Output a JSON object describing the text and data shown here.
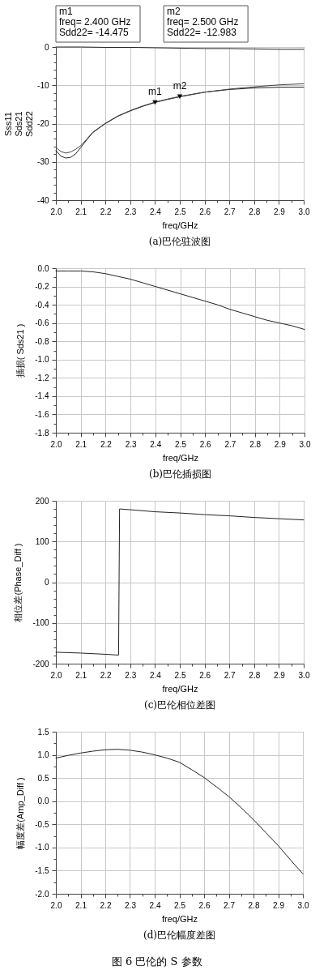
{
  "chart_data": [
    {
      "type": "line",
      "title": "(a)巴伦驻波图",
      "xlabel": "freq/GHz",
      "ylabel": "Sss11\nSds21\nSdd22",
      "xlim": [
        2,
        3
      ],
      "xticks": [
        {
          "value": 2,
          "label": "2.0"
        },
        {
          "value": 2.05,
          "label": null
        },
        2.1,
        {
          "value": 2.15,
          "label": null
        },
        2.2,
        {
          "value": 2.25,
          "label": null
        },
        2.3,
        {
          "value": 2.35,
          "label": null
        },
        2.4,
        {
          "value": 2.45,
          "label": null
        },
        2.5,
        {
          "value": 2.55,
          "label": null
        },
        2.6,
        {
          "value": 2.65,
          "label": null
        },
        2.7,
        {
          "value": 2.75,
          "label": null
        },
        2.8,
        {
          "value": 2.85,
          "label": null
        },
        2.9,
        {
          "value": 2.95,
          "label": null
        },
        {
          "value": 3,
          "label": "3.0"
        }
      ],
      "ylim": [
        -40,
        0
      ],
      "yticks": [
        0,
        {
          "value": -2,
          "label": null
        },
        {
          "value": -4,
          "label": null
        },
        {
          "value": -6,
          "label": null
        },
        {
          "value": -8,
          "label": null
        },
        -10,
        {
          "value": -12,
          "label": null
        },
        {
          "value": -14,
          "label": null
        },
        {
          "value": -16,
          "label": null
        },
        {
          "value": -18,
          "label": null
        },
        -20,
        {
          "value": -22,
          "label": null
        },
        {
          "value": -24,
          "label": null
        },
        {
          "value": -26,
          "label": null
        },
        {
          "value": -28,
          "label": null
        },
        -30,
        {
          "value": -32,
          "label": null
        },
        {
          "value": -34,
          "label": null
        },
        {
          "value": -36,
          "label": null
        },
        {
          "value": -38,
          "label": null
        },
        -40
      ],
      "grid": true,
      "line_style": "solid",
      "series": [
        {
          "color": "#222222",
          "x": [
            2.0,
            2.1,
            2.2,
            2.3,
            2.4,
            2.5,
            2.6,
            2.7,
            2.8,
            2.9,
            3.0
          ],
          "values": [
            0,
            0,
            -0.1,
            -0.1,
            -0.2,
            -0.3,
            -0.4,
            -0.4,
            -0.5,
            -0.6,
            -0.6
          ]
        },
        {
          "color": "#222222",
          "x": [
            2.0,
            2.02,
            2.04,
            2.06,
            2.08,
            2.1,
            2.125,
            2.15,
            2.2,
            2.25,
            2.3,
            2.35,
            2.4,
            2.45,
            2.5,
            2.6,
            2.7,
            2.8,
            2.9,
            3.0
          ],
          "values": [
            -27.0,
            -28.5,
            -29.0,
            -28.8,
            -27.9,
            -26.3,
            -24.2,
            -22.3,
            -20.0,
            -18.1,
            -16.7,
            -15.5,
            -14.5,
            -13.7,
            -13.0,
            -11.8,
            -11.1,
            -10.7,
            -10.5,
            -10.5
          ]
        },
        {
          "color": "#444444",
          "x": [
            2.0,
            2.02,
            2.04,
            2.06,
            2.08,
            2.1,
            2.125,
            2.15,
            2.2,
            2.25,
            2.3,
            2.35,
            2.4,
            2.45,
            2.5,
            2.6,
            2.7,
            2.8,
            2.9,
            3.0
          ],
          "values": [
            -26.2,
            -27.3,
            -27.7,
            -27.4,
            -26.7,
            -25.8,
            -24.0,
            -22.2,
            -19.9,
            -18.0,
            -16.6,
            -15.4,
            -14.4,
            -13.6,
            -12.9,
            -11.8,
            -11.0,
            -10.4,
            -9.9,
            -9.6
          ]
        }
      ],
      "annotations": [
        {
          "text": "m1",
          "x": 2.4,
          "y": -14.475
        },
        {
          "text": "m2",
          "x": 2.5,
          "y": -12.983
        },
        "m1\nfreq= 2.400 GHz\nSdd22= -14.475",
        "m2\nfreq= 2.500 GHz\nSdd22= -12.983"
      ]
    },
    {
      "type": "line",
      "title": "(b)巴伦插损图",
      "xlabel": "freq/GHz",
      "ylabel": "插损( Sds21 )",
      "xlim": [
        2,
        3
      ],
      "xticks": [
        {
          "value": 2,
          "label": "2.0"
        },
        {
          "value": 2.05,
          "label": null
        },
        2.1,
        {
          "value": 2.15,
          "label": null
        },
        2.2,
        {
          "value": 2.25,
          "label": null
        },
        2.3,
        {
          "value": 2.35,
          "label": null
        },
        2.4,
        {
          "value": 2.45,
          "label": null
        },
        2.5,
        {
          "value": 2.55,
          "label": null
        },
        2.6,
        {
          "value": 2.65,
          "label": null
        },
        2.7,
        {
          "value": 2.75,
          "label": null
        },
        2.8,
        {
          "value": 2.85,
          "label": null
        },
        2.9,
        {
          "value": 2.95,
          "label": null
        },
        {
          "value": 3,
          "label": "3.0"
        }
      ],
      "ylim": [
        -1.8,
        0
      ],
      "yticks": [
        {
          "value": 0,
          "label": "0.0"
        },
        {
          "value": -0.1,
          "label": null
        },
        -0.2,
        {
          "value": -0.3,
          "label": null
        },
        -0.4,
        {
          "value": -0.5,
          "label": null
        },
        -0.6,
        {
          "value": -0.7,
          "label": null
        },
        -0.8,
        {
          "value": -0.9,
          "label": null
        },
        {
          "value": -1,
          "label": "-1.0"
        },
        {
          "value": -1.1,
          "label": null
        },
        -1.2,
        {
          "value": -1.3,
          "label": null
        },
        -1.4,
        {
          "value": -1.5,
          "label": null
        },
        -1.6,
        {
          "value": -1.7,
          "label": null
        },
        -1.8
      ],
      "grid": true,
      "line_style": "solid",
      "series": [
        {
          "color": "#222222",
          "x": [
            2.0,
            2.05,
            2.1,
            2.15,
            2.2,
            2.25,
            2.3,
            2.35,
            2.4,
            2.45,
            2.5,
            2.55,
            2.6,
            2.65,
            2.7,
            2.75,
            2.8,
            2.85,
            2.9,
            2.95,
            3.0
          ],
          "values": [
            -0.03,
            -0.03,
            -0.03,
            -0.04,
            -0.06,
            -0.09,
            -0.12,
            -0.16,
            -0.2,
            -0.24,
            -0.28,
            -0.32,
            -0.36,
            -0.4,
            -0.45,
            -0.49,
            -0.53,
            -0.57,
            -0.6,
            -0.63,
            -0.67
          ]
        }
      ]
    },
    {
      "type": "line",
      "title": "(c)巴伦相位差图",
      "xlabel": "freq/GHz",
      "ylabel": "相位差(Phase_Diff )",
      "xlim": [
        2,
        3
      ],
      "xticks": [
        {
          "value": 2,
          "label": "2.0"
        },
        {
          "value": 2.05,
          "label": null
        },
        2.1,
        {
          "value": 2.15,
          "label": null
        },
        2.2,
        {
          "value": 2.25,
          "label": null
        },
        2.3,
        {
          "value": 2.35,
          "label": null
        },
        2.4,
        {
          "value": 2.45,
          "label": null
        },
        2.5,
        {
          "value": 2.55,
          "label": null
        },
        2.6,
        {
          "value": 2.65,
          "label": null
        },
        2.7,
        {
          "value": 2.75,
          "label": null
        },
        2.8,
        {
          "value": 2.85,
          "label": null
        },
        2.9,
        {
          "value": 2.95,
          "label": null
        },
        {
          "value": 3,
          "label": "3.0"
        }
      ],
      "ylim": [
        -200,
        200
      ],
      "yticks": [
        200,
        {
          "value": 180,
          "label": null
        },
        {
          "value": 160,
          "label": null
        },
        {
          "value": 140,
          "label": null
        },
        {
          "value": 120,
          "label": null
        },
        100,
        {
          "value": 80,
          "label": null
        },
        {
          "value": 60,
          "label": null
        },
        {
          "value": 40,
          "label": null
        },
        {
          "value": 20,
          "label": null
        },
        0,
        {
          "value": -20,
          "label": null
        },
        {
          "value": -40,
          "label": null
        },
        {
          "value": -60,
          "label": null
        },
        {
          "value": -80,
          "label": null
        },
        -100,
        {
          "value": -120,
          "label": null
        },
        {
          "value": -140,
          "label": null
        },
        {
          "value": -160,
          "label": null
        },
        {
          "value": -180,
          "label": null
        },
        -200
      ],
      "grid": true,
      "line_style": "solid",
      "series": [
        {
          "color": "#222222",
          "x": [
            2.0,
            2.1,
            2.2,
            2.253,
            2.257,
            2.3,
            2.4,
            2.5,
            2.6,
            2.7,
            2.8,
            2.9,
            3.0
          ],
          "values": [
            -172,
            -174,
            -177,
            -179,
            180,
            178,
            173,
            170,
            166,
            163,
            159,
            156,
            153
          ]
        }
      ]
    },
    {
      "type": "line",
      "title": "(d)巴伦幅度差图",
      "xlabel": "freq/GHz",
      "ylabel": "幅度差(Amp_Diff )",
      "xlim": [
        2,
        3
      ],
      "xticks": [
        {
          "value": 2,
          "label": "2.0"
        },
        {
          "value": 2.05,
          "label": null
        },
        2.1,
        {
          "value": 2.15,
          "label": null
        },
        2.2,
        {
          "value": 2.25,
          "label": null
        },
        2.3,
        {
          "value": 2.35,
          "label": null
        },
        2.4,
        {
          "value": 2.45,
          "label": null
        },
        2.5,
        {
          "value": 2.55,
          "label": null
        },
        2.6,
        {
          "value": 2.65,
          "label": null
        },
        2.7,
        {
          "value": 2.75,
          "label": null
        },
        2.8,
        {
          "value": 2.85,
          "label": null
        },
        2.9,
        {
          "value": 2.95,
          "label": null
        },
        {
          "value": 3,
          "label": "3.0"
        }
      ],
      "ylim": [
        -2,
        1.5
      ],
      "yticks": [
        1.5,
        {
          "value": 1.25,
          "label": null
        },
        {
          "value": 1,
          "label": "1.0"
        },
        {
          "value": 0.75,
          "label": null
        },
        0.5,
        {
          "value": 0.25,
          "label": null
        },
        {
          "value": 0,
          "label": "0.0"
        },
        {
          "value": -0.25,
          "label": null
        },
        -0.5,
        {
          "value": -0.75,
          "label": null
        },
        {
          "value": -1,
          "label": "-1.0"
        },
        {
          "value": -1.25,
          "label": null
        },
        -1.5,
        {
          "value": -1.75,
          "label": null
        },
        {
          "value": -2,
          "label": "-2.0"
        }
      ],
      "grid": true,
      "line_style": "solid",
      "series": [
        {
          "color": "#222222",
          "x": [
            2.0,
            2.05,
            2.1,
            2.15,
            2.2,
            2.25,
            2.3,
            2.35,
            2.4,
            2.45,
            2.5,
            2.55,
            2.6,
            2.65,
            2.7,
            2.75,
            2.8,
            2.85,
            2.9,
            2.95,
            3.0
          ],
          "values": [
            0.93,
            0.99,
            1.04,
            1.08,
            1.11,
            1.12,
            1.1,
            1.06,
            1.0,
            0.93,
            0.84,
            0.68,
            0.51,
            0.31,
            0.1,
            -0.14,
            -0.4,
            -0.68,
            -0.96,
            -1.27,
            -1.57
          ]
        }
      ],
      "annotations": [
        "图 6 巴伦的 S 参数"
      ]
    }
  ]
}
